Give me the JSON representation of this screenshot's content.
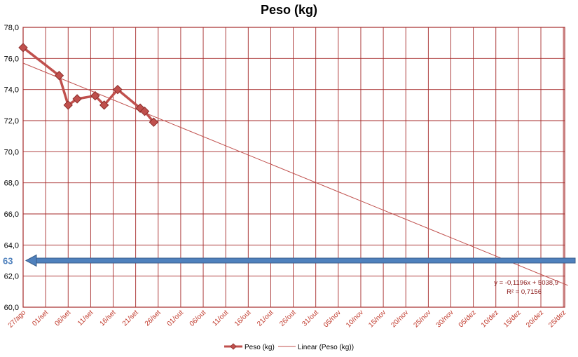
{
  "chart_data": {
    "type": "line",
    "title": "Peso (kg)",
    "xlabel": "",
    "ylabel": "",
    "ylim": [
      60,
      78
    ],
    "yticks": [
      "60,0",
      "62,0",
      "64,0",
      "66,0",
      "68,0",
      "70,0",
      "72,0",
      "74,0",
      "76,0",
      "78,0"
    ],
    "x_tick_labels": [
      "27/ago",
      "01/set",
      "06/set",
      "11/set",
      "16/set",
      "21/set",
      "26/set",
      "01/out",
      "06/out",
      "11/out",
      "16/out",
      "21/out",
      "26/out",
      "31/out",
      "05/nov",
      "10/nov",
      "15/nov",
      "20/nov",
      "25/nov",
      "30/nov",
      "05/dez",
      "10/dez",
      "15/dez",
      "20/dez",
      "25/dez"
    ],
    "grid": true,
    "legend_position": "bottom",
    "series": [
      {
        "name": "Peso (kg)",
        "color": "#c0504d",
        "marker": "diamond",
        "points": [
          {
            "date": "27/ago",
            "y": 76.7
          },
          {
            "date": "04/set",
            "y": 74.9
          },
          {
            "date": "06/set",
            "y": 73.0
          },
          {
            "date": "08/set",
            "y": 73.4
          },
          {
            "date": "12/set",
            "y": 73.6
          },
          {
            "date": "14/set",
            "y": 73.0
          },
          {
            "date": "17/set",
            "y": 74.0
          },
          {
            "date": "22/set",
            "y": 72.8
          },
          {
            "date": "23/set",
            "y": 72.6
          },
          {
            "date": "25/set",
            "y": 71.9
          }
        ]
      },
      {
        "name": "Linear (Peso (kg))",
        "color": "#c0504d",
        "type": "trendline",
        "points": [
          {
            "date": "27/ago",
            "y": 75.7
          },
          {
            "date": "26/dez",
            "y": 61.4
          }
        ]
      }
    ],
    "annotations": {
      "equation": "y = -0,1196x + 5038,9",
      "r_squared": "R² = 0,7156",
      "reference_value": "63",
      "reference_y": 63
    }
  }
}
